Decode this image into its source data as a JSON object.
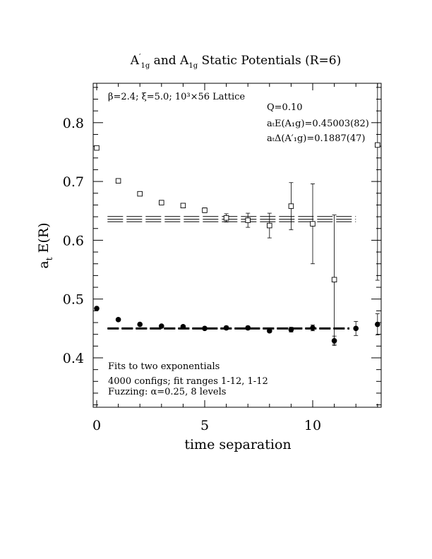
{
  "chart_data": {
    "type": "scatter",
    "title": "A′1g and A1g Static Potentials (R=6)",
    "title_parts": {
      "a": "A",
      "a_sup": "′",
      "a_sub": "1g",
      "mid": " and A",
      "b_sub": "1g",
      "tail": " Static Potentials (R=6)"
    },
    "xlabel": "time separation",
    "ylabel": "a",
    "ylabel_sub": "t",
    "ylabel_tail": " E(R)",
    "xlim": [
      0,
      13
    ],
    "ylim": [
      0.31,
      0.865
    ],
    "x_ticks": [
      0,
      5,
      10
    ],
    "x_tick_labels": [
      "0",
      "5",
      "10"
    ],
    "y_ticks": [
      0.4,
      0.5,
      0.6,
      0.7,
      0.8
    ],
    "y_tick_labels": [
      "0.4",
      "0.5",
      "0.6",
      "0.7",
      "0.8"
    ],
    "annotations": {
      "lattice": "β=2.4; ξ=5.0; 10³×56 Lattice",
      "q": "Q=0.10",
      "energy": "aₜE(A₁g)=0.45003(82)",
      "delta": "aₜΔ(A′₁g)=0.1887(47)",
      "fits": "Fits to two exponentials",
      "configs": "4000 configs; fit ranges 1-12, 1-12",
      "fuzzing": "Fuzzing: α=0.25, 8 levels"
    },
    "series": [
      {
        "marker": "filled-circle",
        "x": [
          0,
          1,
          2,
          3,
          4,
          5,
          6,
          7,
          8,
          9,
          10,
          11,
          12,
          13
        ],
        "y": [
          0.484,
          0.465,
          0.457,
          0.454,
          0.453,
          0.45,
          0.451,
          0.451,
          0.446,
          0.448,
          0.451,
          0.429,
          0.45,
          0.457
        ],
        "err": [
          0.002,
          0.002,
          0.002,
          0.002,
          0.002,
          0.002,
          0.003,
          0.003,
          0.003,
          0.004,
          0.005,
          0.008,
          0.012,
          0.018
        ]
      },
      {
        "marker": "open-square",
        "x": [
          0,
          1,
          2,
          3,
          4,
          5,
          6,
          7,
          8,
          9,
          10,
          11,
          13
        ],
        "y": [
          0.757,
          0.701,
          0.679,
          0.664,
          0.659,
          0.651,
          0.638,
          0.634,
          0.625,
          0.658,
          0.628,
          0.533,
          0.762
        ],
        "err": [
          0.002,
          0.002,
          0.002,
          0.003,
          0.003,
          0.004,
          0.007,
          0.012,
          0.021,
          0.04,
          0.068,
          0.11,
          0.23
        ]
      }
    ],
    "fit_lines": [
      {
        "x": [
          0.5,
          12
        ],
        "y": 0.6357,
        "band": [
          0.6315,
          0.6404
        ],
        "style": "dashed",
        "weight": "thin"
      },
      {
        "x": [
          0.5,
          11.7
        ],
        "y": 0.45,
        "band": [
          0.4492,
          0.4508
        ],
        "style": "dashed",
        "weight": "thick"
      }
    ]
  }
}
